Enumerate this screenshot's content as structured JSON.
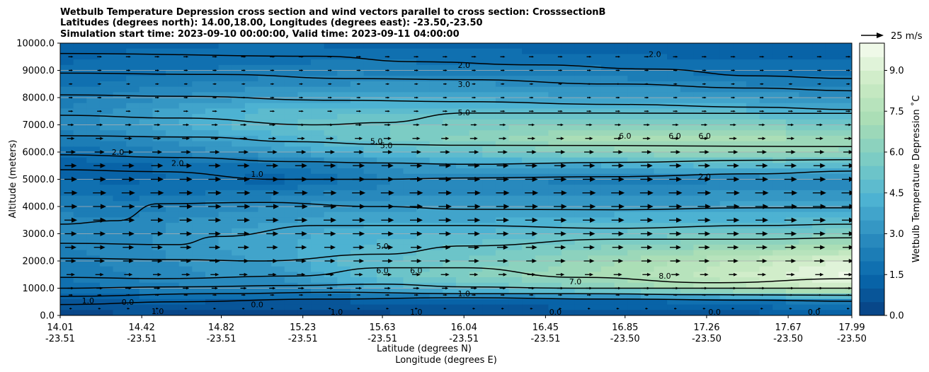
{
  "chart_data": {
    "type": "heatmap",
    "title_lines": [
      "Wetbulb Temperature Depression cross section and wind vectors parallel to cross section: CrosssectionB",
      "Latitudes (degrees north): 14.00,18.00, Longitudes (degrees east): -23.50,-23.50",
      "Simulation start time: 2023-09-10 00:00:00, Valid time: 2023-09-11 04:00:00"
    ],
    "ylabel": "Altitude (meters)",
    "xlabel_lat": "Latitude (degrees N)",
    "xlabel_lon": "Longitude (degrees E)",
    "ylim": [
      0,
      10000
    ],
    "y_ticks": [
      "0.0",
      "1000.0",
      "2000.0",
      "3000.0",
      "4000.0",
      "5000.0",
      "6000.0",
      "7000.0",
      "8000.0",
      "9000.0",
      "10000.0"
    ],
    "y_tick_values": [
      0,
      1000,
      2000,
      3000,
      4000,
      5000,
      6000,
      7000,
      8000,
      9000,
      10000
    ],
    "x_ticks_lat": [
      "14.01",
      "14.42",
      "14.82",
      "15.23",
      "15.63",
      "16.04",
      "16.45",
      "16.85",
      "17.26",
      "17.67",
      "17.99"
    ],
    "x_ticks_lon": [
      "-23.51",
      "-23.51",
      "-23.51",
      "-23.51",
      "-23.51",
      "-23.51",
      "-23.51",
      "-23.50",
      "-23.50",
      "-23.50",
      "-23.50"
    ],
    "x_tick_values": [
      14.01,
      14.42,
      14.82,
      15.23,
      15.63,
      16.04,
      16.45,
      16.85,
      17.26,
      17.67,
      17.99
    ],
    "xlim": [
      14.01,
      17.99
    ],
    "grid": "horizontal",
    "colorbar": {
      "label": "Wetbulb Temperature Depression ˚C",
      "range": [
        0,
        10
      ],
      "ticks": [
        "0.0",
        "1.5",
        "3.0",
        "4.5",
        "6.0",
        "7.5",
        "9.0"
      ],
      "tick_values": [
        0,
        1.5,
        3.0,
        4.5,
        6.0,
        7.5,
        9.0
      ],
      "levels": 20
    },
    "quiver_key": "25 m/s",
    "colors": [
      "#084081",
      "#0868ac",
      "#2b8cbe",
      "#4eb3d3",
      "#7bccc4",
      "#a8ddb5",
      "#ccebc5",
      "#f7fcf0"
    ],
    "field_rows": [
      {
        "alt": 0,
        "values": [
          0.3,
          0.4,
          0.3,
          0.2,
          0.3,
          0.4,
          0.5,
          0.6,
          0.6,
          0.7,
          0.8,
          0.8
        ]
      },
      {
        "alt": 500,
        "values": [
          0.9,
          1.0,
          1.0,
          0.9,
          1.0,
          1.1,
          1.2,
          1.3,
          1.4,
          1.6,
          2.0,
          2.4
        ]
      },
      {
        "alt": 1000,
        "values": [
          1.6,
          2.2,
          2.5,
          2.4,
          3.5,
          4.5,
          5.2,
          5.8,
          6.5,
          7.5,
          8.2,
          8.8
        ]
      },
      {
        "alt": 1500,
        "values": [
          2.0,
          2.6,
          3.0,
          3.2,
          4.5,
          5.6,
          6.2,
          6.8,
          7.5,
          8.2,
          9.0,
          9.6
        ]
      },
      {
        "alt": 2000,
        "values": [
          2.2,
          2.8,
          3.2,
          3.6,
          4.6,
          5.2,
          5.8,
          6.4,
          7.2,
          7.8,
          8.4,
          9.2
        ]
      },
      {
        "alt": 2500,
        "values": [
          2.4,
          2.8,
          3.4,
          3.8,
          4.4,
          4.9,
          5.3,
          5.8,
          6.2,
          6.6,
          7.0,
          7.4
        ]
      },
      {
        "alt": 3000,
        "values": [
          2.6,
          2.8,
          3.4,
          3.8,
          4.2,
          4.4,
          4.6,
          5.0,
          5.2,
          5.4,
          5.6,
          5.8
        ]
      },
      {
        "alt": 3500,
        "values": [
          2.6,
          2.6,
          3.2,
          3.4,
          3.8,
          3.9,
          4.0,
          4.2,
          4.3,
          4.4,
          4.5,
          4.6
        ]
      },
      {
        "alt": 4000,
        "values": [
          2.4,
          2.2,
          2.6,
          3.0,
          3.4,
          3.4,
          3.4,
          3.6,
          3.6,
          3.6,
          3.8,
          3.8
        ]
      },
      {
        "alt": 4500,
        "values": [
          2.0,
          1.8,
          2.0,
          2.2,
          2.6,
          2.8,
          2.8,
          2.6,
          2.8,
          3.0,
          3.2,
          3.0
        ]
      },
      {
        "alt": 5000,
        "values": [
          1.4,
          1.4,
          1.6,
          1.2,
          2.0,
          2.8,
          2.6,
          2.4,
          2.2,
          2.4,
          2.6,
          2.8
        ]
      },
      {
        "alt": 5500,
        "values": [
          1.2,
          1.4,
          1.8,
          2.0,
          2.6,
          3.4,
          3.6,
          3.8,
          4.2,
          4.6,
          4.8,
          4.6
        ]
      },
      {
        "alt": 6000,
        "values": [
          1.6,
          2.2,
          2.8,
          3.4,
          4.2,
          4.8,
          5.4,
          6.0,
          6.4,
          6.6,
          6.6,
          6.4
        ]
      },
      {
        "alt": 6500,
        "values": [
          2.2,
          2.8,
          3.6,
          4.2,
          5.2,
          5.8,
          6.4,
          7.0,
          7.4,
          7.2,
          7.0,
          6.8
        ]
      },
      {
        "alt": 7000,
        "values": [
          2.6,
          3.4,
          4.4,
          5.0,
          5.4,
          5.6,
          5.8,
          6.0,
          6.2,
          6.0,
          5.8,
          5.4
        ]
      },
      {
        "alt": 7500,
        "values": [
          2.6,
          3.2,
          4.0,
          4.6,
          4.8,
          4.8,
          4.8,
          4.8,
          4.8,
          4.6,
          4.4,
          4.2
        ]
      },
      {
        "alt": 8000,
        "values": [
          2.2,
          2.8,
          3.2,
          3.6,
          3.8,
          3.8,
          3.8,
          3.6,
          3.6,
          3.4,
          3.2,
          3.0
        ]
      },
      {
        "alt": 8500,
        "values": [
          1.8,
          2.2,
          2.6,
          2.8,
          3.0,
          3.0,
          3.0,
          2.9,
          2.8,
          2.6,
          2.4,
          2.4
        ]
      },
      {
        "alt": 9000,
        "values": [
          1.6,
          1.8,
          2.0,
          2.2,
          2.4,
          2.3,
          2.2,
          2.2,
          2.0,
          1.8,
          1.8,
          1.8
        ]
      },
      {
        "alt": 9500,
        "values": [
          1.4,
          1.6,
          1.8,
          1.8,
          1.8,
          1.8,
          1.7,
          1.6,
          1.6,
          1.4,
          1.4,
          1.4
        ]
      },
      {
        "alt": 10000,
        "values": [
          1.2,
          1.4,
          1.4,
          1.5,
          1.4,
          1.4,
          1.3,
          1.2,
          1.2,
          1.2,
          1.2,
          1.2
        ]
      }
    ],
    "contour_lines": [
      {
        "points": [
          [
            14.01,
            9620
          ],
          [
            15.3,
            9520
          ],
          [
            15.8,
            9320
          ],
          [
            16.4,
            9200
          ],
          [
            17.0,
            9050
          ],
          [
            17.5,
            8800
          ],
          [
            17.99,
            8700
          ]
        ]
      },
      {
        "points": [
          [
            14.01,
            8900
          ],
          [
            14.8,
            8850
          ],
          [
            15.5,
            8700
          ],
          [
            16.04,
            8660
          ],
          [
            16.8,
            8500
          ],
          [
            17.5,
            8350
          ],
          [
            17.99,
            8250
          ]
        ]
      },
      {
        "points": [
          [
            14.01,
            8100
          ],
          [
            14.6,
            8050
          ],
          [
            15.4,
            7900
          ],
          [
            16.04,
            7850
          ],
          [
            16.8,
            7750
          ],
          [
            17.5,
            7650
          ],
          [
            17.99,
            7560
          ]
        ]
      },
      {
        "points": [
          [
            14.01,
            7350
          ],
          [
            14.6,
            7250
          ],
          [
            15.3,
            7000
          ],
          [
            15.63,
            7080
          ],
          [
            16.04,
            7430
          ],
          [
            16.8,
            7430
          ],
          [
            17.5,
            7420
          ],
          [
            17.99,
            7420
          ]
        ]
      },
      {
        "points": [
          [
            14.01,
            6600
          ],
          [
            14.7,
            6550
          ],
          [
            15.2,
            6380
          ],
          [
            15.63,
            6280
          ],
          [
            16.04,
            6250
          ],
          [
            16.8,
            6240
          ],
          [
            17.5,
            6210
          ],
          [
            17.99,
            6200
          ]
        ]
      },
      {
        "points": [
          [
            14.01,
            5900
          ],
          [
            14.6,
            5800
          ],
          [
            15.2,
            5650
          ],
          [
            15.63,
            5600
          ],
          [
            16.04,
            5550
          ],
          [
            16.8,
            5620
          ],
          [
            17.5,
            5700
          ],
          [
            17.99,
            5720
          ]
        ]
      },
      {
        "points": [
          [
            14.01,
            5350
          ],
          [
            14.5,
            5280
          ],
          [
            15.1,
            5000
          ],
          [
            15.63,
            5000
          ],
          [
            16.04,
            5050
          ],
          [
            16.8,
            5100
          ],
          [
            17.5,
            5200
          ],
          [
            17.99,
            5300
          ]
        ]
      },
      {
        "points": [
          [
            14.01,
            3350
          ],
          [
            14.3,
            3480
          ],
          [
            14.5,
            4100
          ],
          [
            15.0,
            4150
          ],
          [
            15.63,
            4000
          ],
          [
            16.04,
            3900
          ],
          [
            16.8,
            3880
          ],
          [
            17.5,
            3950
          ],
          [
            17.99,
            3950
          ]
        ]
      },
      {
        "points": [
          [
            14.01,
            2650
          ],
          [
            14.6,
            2600
          ],
          [
            14.8,
            2900
          ],
          [
            15.3,
            3300
          ],
          [
            16.04,
            3300
          ],
          [
            16.8,
            3200
          ],
          [
            17.5,
            3300
          ],
          [
            17.99,
            3350
          ]
        ]
      },
      {
        "points": [
          [
            14.01,
            2100
          ],
          [
            14.6,
            2050
          ],
          [
            15.0,
            2000
          ],
          [
            15.63,
            2250
          ],
          [
            16.04,
            2550
          ],
          [
            16.8,
            2800
          ],
          [
            17.5,
            2800
          ],
          [
            17.99,
            2850
          ]
        ]
      },
      {
        "points": [
          [
            14.01,
            1400
          ],
          [
            14.5,
            1350
          ],
          [
            15.2,
            1450
          ],
          [
            15.63,
            1750
          ],
          [
            16.04,
            1750
          ],
          [
            16.6,
            1400
          ],
          [
            17.3,
            1200
          ],
          [
            17.99,
            1350
          ]
        ]
      },
      {
        "points": [
          [
            14.01,
            1000
          ],
          [
            14.6,
            1050
          ],
          [
            15.2,
            1100
          ],
          [
            15.63,
            1150
          ],
          [
            16.04,
            1050
          ],
          [
            16.6,
            1000
          ],
          [
            17.3,
            1000
          ],
          [
            17.99,
            1000
          ]
        ]
      },
      {
        "points": [
          [
            14.01,
            700
          ],
          [
            14.8,
            800
          ],
          [
            15.4,
            850
          ],
          [
            16.04,
            800
          ],
          [
            16.6,
            800
          ],
          [
            17.3,
            760
          ],
          [
            17.99,
            740
          ]
        ]
      },
      {
        "points": [
          [
            14.01,
            400
          ],
          [
            14.6,
            500
          ],
          [
            15.3,
            600
          ],
          [
            16.04,
            650
          ],
          [
            16.8,
            600
          ],
          [
            17.5,
            560
          ],
          [
            17.99,
            520
          ]
        ]
      }
    ],
    "contour_labels": [
      {
        "x": 16.04,
        "y": 9200,
        "text": "2.0"
      },
      {
        "x": 16.04,
        "y": 8500,
        "text": "3.0"
      },
      {
        "x": 16.04,
        "y": 7450,
        "text": "5.0"
      },
      {
        "x": 15.6,
        "y": 6400,
        "text": "5.0"
      },
      {
        "x": 15.65,
        "y": 6250,
        "text": "5.0"
      },
      {
        "x": 16.85,
        "y": 6600,
        "text": "6.0"
      },
      {
        "x": 17.1,
        "y": 6600,
        "text": "6.0"
      },
      {
        "x": 17.25,
        "y": 6600,
        "text": "6.0"
      },
      {
        "x": 17.25,
        "y": 5100,
        "text": "2.0"
      },
      {
        "x": 17.0,
        "y": 9600,
        "text": "2.0"
      },
      {
        "x": 14.3,
        "y": 6000,
        "text": "2.0"
      },
      {
        "x": 14.6,
        "y": 5600,
        "text": "2.0"
      },
      {
        "x": 15.0,
        "y": 5200,
        "text": "1.0"
      },
      {
        "x": 15.63,
        "y": 2550,
        "text": "5.0"
      },
      {
        "x": 15.63,
        "y": 1650,
        "text": "6.0"
      },
      {
        "x": 15.8,
        "y": 1650,
        "text": "6.0"
      },
      {
        "x": 16.6,
        "y": 1250,
        "text": "7.0"
      },
      {
        "x": 17.05,
        "y": 1450,
        "text": "8.0"
      },
      {
        "x": 16.04,
        "y": 800,
        "text": "1.0"
      },
      {
        "x": 14.15,
        "y": 550,
        "text": "1.0"
      },
      {
        "x": 14.35,
        "y": 500,
        "text": "0.0"
      },
      {
        "x": 15.0,
        "y": 400,
        "text": "0.0"
      },
      {
        "x": 14.5,
        "y": 150,
        "text": "1.0"
      },
      {
        "x": 15.4,
        "y": 130,
        "text": "1.0"
      },
      {
        "x": 15.8,
        "y": 130,
        "text": "1.0"
      },
      {
        "x": 16.5,
        "y": 130,
        "text": "0.0"
      },
      {
        "x": 17.3,
        "y": 130,
        "text": "0.0"
      },
      {
        "x": 17.8,
        "y": 130,
        "text": "0.0"
      }
    ],
    "wind_rows": [
      {
        "alt": 250,
        "speed": 0.05
      },
      {
        "alt": 750,
        "speed": 0.15
      },
      {
        "alt": 1000,
        "speed": 0.3
      },
      {
        "alt": 1500,
        "speed": 0.45
      },
      {
        "alt": 2000,
        "speed": 0.6
      },
      {
        "alt": 2500,
        "speed": 0.65
      },
      {
        "alt": 3000,
        "speed": 0.7
      },
      {
        "alt": 3500,
        "speed": 0.75
      },
      {
        "alt": 4000,
        "speed": 0.78
      },
      {
        "alt": 4500,
        "speed": 0.8
      },
      {
        "alt": 5000,
        "speed": 0.75
      },
      {
        "alt": 5500,
        "speed": 0.7
      },
      {
        "alt": 6000,
        "speed": 0.55
      },
      {
        "alt": 6500,
        "speed": 0.4
      },
      {
        "alt": 7000,
        "speed": 0.3
      },
      {
        "alt": 7500,
        "speed": 0.2
      },
      {
        "alt": 8000,
        "speed": 0.15
      },
      {
        "alt": 8500,
        "speed": 0.12
      },
      {
        "alt": 9000,
        "speed": 0.15
      },
      {
        "alt": 9500,
        "speed": 0.2
      }
    ],
    "wind_columns": 28
  }
}
